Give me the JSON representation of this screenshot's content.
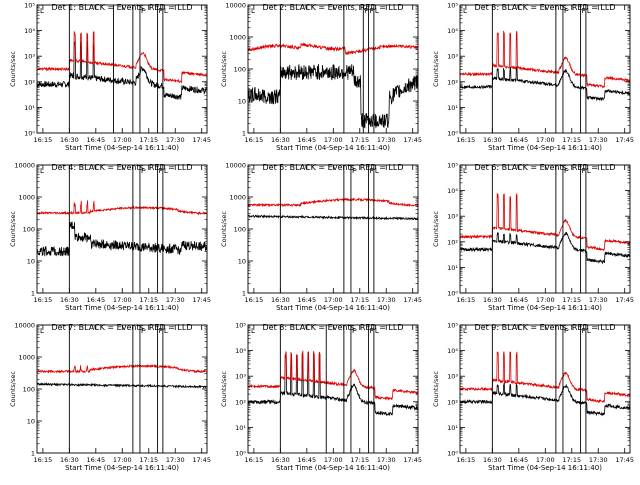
{
  "colors": {
    "events": "#000000",
    "lld": "#e00000",
    "axes": "#000000",
    "background": "#ffffff"
  },
  "chart_data": [
    {
      "type": "line",
      "title": "Det 1: BLACK = Events, RED = LLD",
      "xlabel": "Start Time (04-Sep-14 16:11:40)",
      "ylabel": "Counts/sec",
      "yscale": "log",
      "ylim_exp": [
        0,
        5
      ],
      "xlim": [
        "16:11:40",
        "17:48:00"
      ],
      "xticks": [
        "16:15",
        "16:30",
        "16:45",
        "17:00",
        "17:15",
        "17:30",
        "17:45"
      ],
      "yticks": [
        "10⁰",
        "10¹",
        "10²",
        "10³",
        "10⁴",
        "10⁵"
      ],
      "event_lines": [
        "16:30",
        "16:55",
        "17:06",
        "17:10",
        "17:20",
        "17:23"
      ],
      "markers": [
        "L",
        "F",
        "F",
        "L"
      ],
      "series": [
        {
          "name": "Events",
          "profile": "flarey",
          "base_log": 1.9,
          "noise": 0.12,
          "bursts": 4,
          "burst_peak_log": 3.6
        },
        {
          "name": "LLD",
          "profile": "flarey",
          "base_log": 2.5,
          "noise": 0.05,
          "bursts": 4,
          "burst_peak_log": 4.0
        }
      ]
    },
    {
      "type": "line",
      "title": "Det 2: BLACK = Events, RED = LLD",
      "xlabel": "Start Time (04-Sep-14 16:11:40)",
      "ylabel": "Counts/sec",
      "yscale": "log",
      "ylim_exp": [
        0,
        4
      ],
      "xlim": [
        "16:11:40",
        "17:48:00"
      ],
      "xticks": [
        "16:15",
        "16:30",
        "16:45",
        "17:00",
        "17:15",
        "17:30",
        "17:45"
      ],
      "yticks": [
        "1",
        "10",
        "100",
        "1000",
        "10000"
      ],
      "event_lines": [
        "16:30",
        "17:06",
        "17:17",
        "17:20",
        "17:23"
      ],
      "markers": [
        "L",
        "F",
        "F",
        "L"
      ],
      "series": [
        {
          "name": "Events",
          "profile": "dip",
          "base_log": 1.6,
          "noise": 0.25,
          "bursts": 0,
          "burst_peak_log": 2.0
        },
        {
          "name": "LLD",
          "profile": "wavy",
          "base_log": 2.6,
          "noise": 0.05,
          "bursts": 0,
          "burst_peak_log": 2.9
        }
      ]
    },
    {
      "type": "line",
      "title": "Det 3: BLACK = Events, RED = LLD",
      "xlabel": "Start Time (04-Sep-14 16:11:40)",
      "ylabel": "Counts/sec",
      "yscale": "log",
      "ylim_exp": [
        0,
        5
      ],
      "xlim": [
        "16:11:40",
        "17:48:00"
      ],
      "xticks": [
        "16:15",
        "16:30",
        "16:45",
        "17:00",
        "17:15",
        "17:30",
        "17:45"
      ],
      "yticks": [
        "10⁰",
        "10¹",
        "10²",
        "10³",
        "10⁴",
        "10⁵"
      ],
      "event_lines": [
        "16:30",
        "17:06",
        "17:10",
        "17:20",
        "17:23"
      ],
      "markers": [
        "L",
        "F",
        "F",
        "L"
      ],
      "series": [
        {
          "name": "Events",
          "profile": "flarey",
          "base_log": 1.8,
          "noise": 0.06,
          "bursts": 4,
          "burst_peak_log": 2.6
        },
        {
          "name": "LLD",
          "profile": "flarey",
          "base_log": 2.3,
          "noise": 0.05,
          "bursts": 4,
          "burst_peak_log": 4.0
        }
      ]
    },
    {
      "type": "line",
      "title": "Det 4: BLACK = Events, RED = LLD",
      "xlabel": "Start Time (04-Sep-14 16:11:40)",
      "ylabel": "Counts/sec",
      "yscale": "log",
      "ylim_exp": [
        0,
        4
      ],
      "xlim": [
        "16:11:40",
        "17:48:00"
      ],
      "xticks": [
        "16:15",
        "16:30",
        "16:45",
        "17:00",
        "17:15",
        "17:30",
        "17:45"
      ],
      "yticks": [
        "1",
        "10",
        "100",
        "1000",
        "10000"
      ],
      "event_lines": [
        "16:30",
        "17:06",
        "17:10",
        "17:20",
        "17:23"
      ],
      "markers": [
        "L",
        "F",
        "F",
        "L"
      ],
      "series": [
        {
          "name": "Events",
          "profile": "step",
          "base_log": 1.3,
          "noise": 0.15,
          "bursts": 0,
          "burst_peak_log": 2.2
        },
        {
          "name": "LLD",
          "profile": "bump",
          "base_log": 2.5,
          "noise": 0.03,
          "bursts": 4,
          "burst_peak_log": 2.9
        }
      ]
    },
    {
      "type": "line",
      "title": "Det 5: BLACK = Events, RED = LLD",
      "xlabel": "Start Time (04-Sep-14 16:11:40)",
      "ylabel": "Counts/sec",
      "yscale": "log",
      "ylim_exp": [
        0,
        4
      ],
      "xlim": [
        "16:11:40",
        "17:48:00"
      ],
      "xticks": [
        "16:15",
        "16:30",
        "16:45",
        "17:00",
        "17:15",
        "17:30",
        "17:45"
      ],
      "yticks": [
        "1",
        "10",
        "100",
        "1000",
        "10000"
      ],
      "event_lines": [
        "16:30",
        "17:06",
        "17:10",
        "17:20",
        "17:23"
      ],
      "markers": [
        "L",
        "F",
        "F",
        "L"
      ],
      "series": [
        {
          "name": "Events",
          "profile": "flat",
          "base_log": 2.4,
          "noise": 0.03,
          "bursts": 0,
          "burst_peak_log": 2.5
        },
        {
          "name": "LLD",
          "profile": "bump",
          "base_log": 2.75,
          "noise": 0.03,
          "bursts": 0,
          "burst_peak_log": 3.0
        }
      ]
    },
    {
      "type": "line",
      "title": "Det 6: BLACK = Events, RED = LLD",
      "xlabel": "Start Time (04-Sep-14 16:11:40)",
      "ylabel": "Counts/sec",
      "yscale": "log",
      "ylim_exp": [
        0,
        5
      ],
      "xlim": [
        "16:11:40",
        "17:48:00"
      ],
      "xticks": [
        "16:15",
        "16:30",
        "16:45",
        "17:00",
        "17:15",
        "17:30",
        "17:45"
      ],
      "yticks": [
        "10⁰",
        "10¹",
        "10²",
        "10³",
        "10⁴",
        "10⁵"
      ],
      "event_lines": [
        "16:30",
        "17:06",
        "17:10",
        "17:20",
        "17:23"
      ],
      "markers": [
        "L",
        "F",
        "F",
        "L"
      ],
      "series": [
        {
          "name": "Events",
          "profile": "flarey",
          "base_log": 1.7,
          "noise": 0.06,
          "bursts": 4,
          "burst_peak_log": 2.4
        },
        {
          "name": "LLD",
          "profile": "flarey",
          "base_log": 2.2,
          "noise": 0.05,
          "bursts": 4,
          "burst_peak_log": 3.9
        }
      ]
    },
    {
      "type": "line",
      "title": "Det 7: BLACK = Events, RED = LLD",
      "xlabel": "Start Time (04-Sep-14 16:11:40)",
      "ylabel": "Counts/sec",
      "yscale": "log",
      "ylim_exp": [
        0,
        4
      ],
      "xlim": [
        "16:11:40",
        "17:48:00"
      ],
      "xticks": [
        "16:15",
        "16:30",
        "16:45",
        "17:00",
        "17:15",
        "17:30",
        "17:45"
      ],
      "yticks": [
        "1",
        "10",
        "100",
        "1000",
        "10000"
      ],
      "event_lines": [
        "16:30",
        "17:06",
        "17:10",
        "17:20",
        "17:23"
      ],
      "markers": [
        "L",
        "F",
        "F",
        "L"
      ],
      "series": [
        {
          "name": "Events",
          "profile": "flat",
          "base_log": 2.15,
          "noise": 0.03,
          "bursts": 0,
          "burst_peak_log": 2.3
        },
        {
          "name": "LLD",
          "profile": "bump",
          "base_log": 2.55,
          "noise": 0.03,
          "bursts": 4,
          "burst_peak_log": 2.75
        }
      ]
    },
    {
      "type": "line",
      "title": "Det 8: BLACK = Events, RED = LLD",
      "xlabel": "Start Time (04-Sep-14 16:11:40)",
      "ylabel": "Counts/sec",
      "yscale": "log",
      "ylim_exp": [
        0,
        5
      ],
      "xlim": [
        "16:11:40",
        "17:48:00"
      ],
      "xticks": [
        "16:15",
        "16:30",
        "16:45",
        "17:00",
        "17:15",
        "17:30",
        "17:45"
      ],
      "yticks": [
        "10⁰",
        "10¹",
        "10²",
        "10³",
        "10⁴",
        "10⁵"
      ],
      "event_lines": [
        "16:30",
        "16:56",
        "17:06",
        "17:10",
        "17:20",
        "17:23"
      ],
      "markers": [
        "L",
        "F",
        "F",
        "L"
      ],
      "series": [
        {
          "name": "Events",
          "profile": "flarey",
          "base_log": 2.0,
          "noise": 0.07,
          "bursts": 7,
          "burst_peak_log": 3.9
        },
        {
          "name": "LLD",
          "profile": "flarey",
          "base_log": 2.6,
          "noise": 0.05,
          "bursts": 7,
          "burst_peak_log": 4.0
        }
      ]
    },
    {
      "type": "line",
      "title": "Det 9: BLACK = Events, RED = LLD",
      "xlabel": "Start Time (04-Sep-14 16:11:40)",
      "ylabel": "Counts/sec",
      "yscale": "log",
      "ylim_exp": [
        0,
        5
      ],
      "xlim": [
        "16:11:40",
        "17:48:00"
      ],
      "xticks": [
        "16:15",
        "16:30",
        "16:45",
        "17:00",
        "17:15",
        "17:30",
        "17:45"
      ],
      "yticks": [
        "10⁰",
        "10¹",
        "10²",
        "10³",
        "10⁴",
        "10⁵"
      ],
      "event_lines": [
        "16:30",
        "17:06",
        "17:10",
        "17:20",
        "17:23"
      ],
      "markers": [
        "L",
        "F",
        "F",
        "L"
      ],
      "series": [
        {
          "name": "Events",
          "profile": "flarey",
          "base_log": 2.0,
          "noise": 0.06,
          "bursts": 4,
          "burst_peak_log": 2.8
        },
        {
          "name": "LLD",
          "profile": "flarey",
          "base_log": 2.5,
          "noise": 0.05,
          "bursts": 4,
          "burst_peak_log": 4.0
        }
      ]
    }
  ]
}
